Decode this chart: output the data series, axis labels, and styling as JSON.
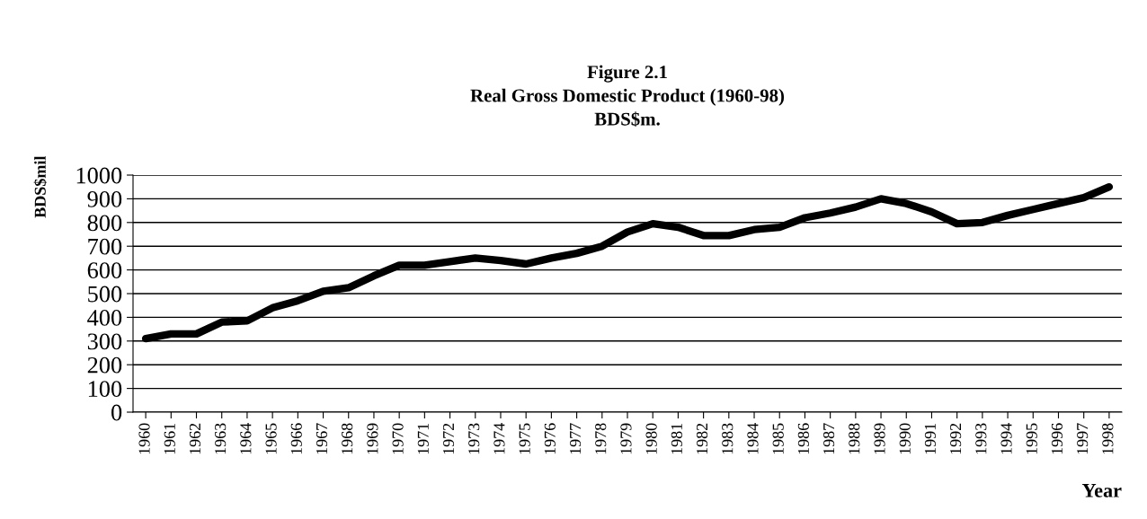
{
  "chart_data": {
    "type": "line",
    "title": "Figure 2.1\nReal Gross Domestic Product (1960-98)\nBDS$m.",
    "xlabel": "Year",
    "ylabel": "BDS$mil",
    "categories": [
      "1960",
      "1961",
      "1962",
      "1963",
      "1964",
      "1965",
      "1966",
      "1967",
      "1968",
      "1969",
      "1970",
      "1971",
      "1972",
      "1973",
      "1974",
      "1975",
      "1976",
      "1977",
      "1978",
      "1979",
      "1980",
      "1981",
      "1982",
      "1983",
      "1984",
      "1985",
      "1986",
      "1987",
      "1988",
      "1989",
      "1990",
      "1991",
      "1992",
      "1993",
      "1994",
      "1995",
      "1996",
      "1997",
      "1998"
    ],
    "series": [
      {
        "color": "#000000",
        "values": [
          310,
          330,
          330,
          380,
          385,
          440,
          470,
          510,
          525,
          575,
          620,
          620,
          635,
          650,
          640,
          625,
          650,
          670,
          700,
          760,
          795,
          780,
          745,
          745,
          770,
          780,
          820,
          840,
          865,
          900,
          880,
          845,
          795,
          800,
          830,
          855,
          880,
          905,
          950
        ]
      }
    ],
    "ylim": [
      0,
      1000
    ],
    "yticks": [
      0,
      100,
      200,
      300,
      400,
      500,
      600,
      700,
      800,
      900,
      1000
    ],
    "grid": "y",
    "marker": "none",
    "line_style": "solid"
  }
}
